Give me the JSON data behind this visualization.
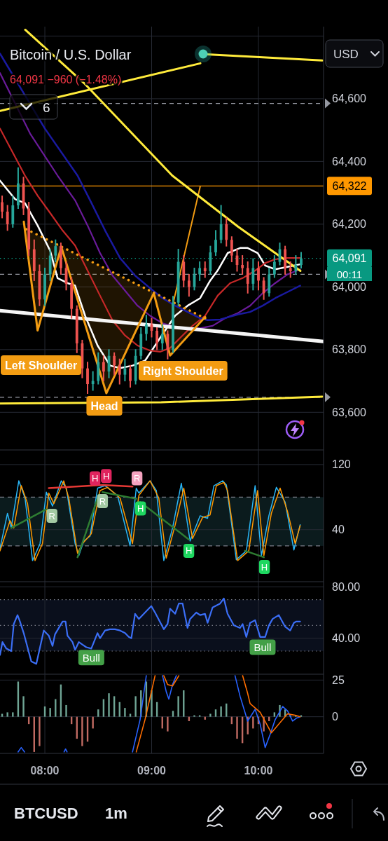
{
  "chart_data": [
    {
      "type": "candlestick",
      "title": "Bitcoin / U.S. Dollar",
      "subtitle": "64,091 −960 (−1.48%)",
      "x": [
        7.6,
        7.65,
        7.7,
        7.75,
        7.8,
        7.85,
        7.9,
        7.95,
        8,
        8.05,
        8.1,
        8.15,
        8.2,
        8.25,
        8.3,
        8.35,
        8.4,
        8.45,
        8.5,
        8.55,
        8.6,
        8.65,
        8.7,
        8.75,
        8.8,
        8.85,
        8.9,
        8.95,
        9,
        9.05,
        9.1,
        9.15,
        9.2,
        9.25,
        9.3,
        9.35,
        9.4,
        9.45,
        9.5,
        9.55,
        9.6,
        9.65,
        9.7,
        9.75,
        9.8,
        9.85,
        9.9,
        9.95,
        10,
        10.05,
        10.1,
        10.15,
        10.2,
        10.25,
        10.3,
        10.35,
        10.4
      ],
      "ohlc": [
        [
          64270,
          64290,
          64220,
          64240
        ],
        [
          64240,
          64260,
          64180,
          64200
        ],
        [
          64200,
          64290,
          64190,
          64260
        ],
        [
          64260,
          64380,
          64250,
          64330
        ],
        [
          64330,
          64350,
          64230,
          64250
        ],
        [
          64250,
          64270,
          64100,
          64120
        ],
        [
          64120,
          64150,
          64020,
          64050
        ],
        [
          64050,
          64070,
          63940,
          63960
        ],
        [
          63960,
          64060,
          63940,
          64040
        ],
        [
          64040,
          64120,
          64020,
          64100
        ],
        [
          64100,
          64150,
          64080,
          64130
        ],
        [
          64130,
          64140,
          64040,
          64060
        ],
        [
          64060,
          64080,
          63990,
          64010
        ],
        [
          64010,
          64030,
          63900,
          63930
        ],
        [
          63930,
          63940,
          63790,
          63820
        ],
        [
          63820,
          63830,
          63710,
          63740
        ],
        [
          63740,
          63760,
          63660,
          63690
        ],
        [
          63690,
          63730,
          63670,
          63700
        ],
        [
          63700,
          63790,
          63690,
          63760
        ],
        [
          63760,
          63780,
          63700,
          63730
        ],
        [
          63730,
          63800,
          63710,
          63780
        ],
        [
          63780,
          63790,
          63720,
          63750
        ],
        [
          63750,
          63770,
          63690,
          63720
        ],
        [
          63720,
          63770,
          63700,
          63740
        ],
        [
          63740,
          63750,
          63680,
          63700
        ],
        [
          63700,
          63800,
          63690,
          63780
        ],
        [
          63780,
          63870,
          63770,
          63850
        ],
        [
          63850,
          63910,
          63830,
          63880
        ],
        [
          63880,
          63900,
          63840,
          63860
        ],
        [
          63860,
          63870,
          63800,
          63820
        ],
        [
          63820,
          63880,
          63800,
          63850
        ],
        [
          63850,
          63860,
          63770,
          63800
        ],
        [
          63800,
          63970,
          63790,
          63950
        ],
        [
          63950,
          64120,
          63940,
          64080
        ],
        [
          64080,
          64100,
          64000,
          64020
        ],
        [
          64020,
          64040,
          63970,
          64000
        ],
        [
          64000,
          64060,
          63990,
          64040
        ],
        [
          64040,
          64080,
          64020,
          64060
        ],
        [
          64060,
          64080,
          64030,
          64050
        ],
        [
          64050,
          64130,
          64040,
          64110
        ],
        [
          64110,
          64180,
          64100,
          64150
        ],
        [
          64150,
          64260,
          64140,
          64200
        ],
        [
          64200,
          64220,
          64130,
          64150
        ],
        [
          64150,
          64160,
          64080,
          64100
        ],
        [
          64100,
          64120,
          64050,
          64070
        ],
        [
          64070,
          64100,
          64040,
          64060
        ],
        [
          64060,
          64080,
          63980,
          64010
        ],
        [
          64010,
          64090,
          63990,
          64060
        ],
        [
          64060,
          64080,
          63990,
          64020
        ],
        [
          64020,
          64030,
          63960,
          63980
        ],
        [
          63980,
          64060,
          63970,
          64040
        ],
        [
          64040,
          64100,
          64030,
          64080
        ],
        [
          64080,
          64140,
          64070,
          64120
        ],
        [
          64120,
          64130,
          64040,
          64060
        ],
        [
          64060,
          64080,
          64030,
          64050
        ],
        [
          64050,
          64100,
          64040,
          64070
        ],
        [
          64070,
          64110,
          64060,
          64091
        ]
      ],
      "colors": [
        "#ef5350",
        "#ef5350",
        "#26a69a",
        "#26a69a",
        "#ef5350",
        "#ef5350",
        "#ef5350",
        "#ef5350",
        "#26a69a",
        "#26a69a",
        "#26a69a",
        "#ef5350",
        "#ef5350",
        "#ef5350",
        "#ef5350",
        "#ef5350",
        "#ef5350",
        "#26a69a",
        "#26a69a",
        "#ef5350",
        "#26a69a",
        "#ef5350",
        "#ef5350",
        "#26a69a",
        "#ef5350",
        "#26a69a",
        "#26a69a",
        "#26a69a",
        "#ef5350",
        "#ef5350",
        "#26a69a",
        "#ef5350",
        "#26a69a",
        "#26a69a",
        "#ef5350",
        "#ef5350",
        "#26a69a",
        "#26a69a",
        "#ef5350",
        "#26a69a",
        "#26a69a",
        "#26a69a",
        "#ef5350",
        "#ef5350",
        "#ef5350",
        "#ef5350",
        "#ef5350",
        "#26a69a",
        "#ef5350",
        "#ef5350",
        "#26a69a",
        "#26a69a",
        "#26a69a",
        "#ef5350",
        "#ef5350",
        "#26a69a",
        "#26a69a"
      ],
      "series": [
        {
          "type": "line",
          "color": "#ffffff",
          "x": [
            7.58,
            7.721,
            7.814,
            7.932,
            8.049,
            8.119,
            8.213,
            8.283,
            8.377,
            8.494,
            8.611,
            8.704,
            8.822,
            8.939,
            9.079,
            9.22,
            9.337,
            9.454,
            9.548,
            9.618,
            9.712,
            9.829,
            9.899,
            9.993,
            10.063,
            10.157,
            10.274,
            10.391
          ],
          "values": [
            64339,
            64280,
            64267,
            64196,
            64116,
            64028,
            64012,
            64004,
            63908,
            63813,
            63749,
            63741,
            63749,
            63765,
            63837,
            63908,
            63940,
            63964,
            64020,
            64052,
            64108,
            64124,
            64124,
            64108,
            64068,
            64056,
            64064,
            64072
          ]
        },
        {
          "type": "line",
          "color": "#c62828",
          "x": [
            7.58,
            7.814,
            7.932,
            8.049,
            8.166,
            8.283,
            8.4,
            8.517,
            8.634,
            8.751,
            8.868,
            8.985,
            9.079,
            9.173,
            9.266,
            9.383,
            9.501,
            9.618,
            9.735,
            9.852,
            9.969,
            10.063,
            10.157,
            10.274,
            10.391
          ],
          "values": [
            64505,
            64355,
            64291,
            64236,
            64180,
            64132,
            64052,
            63972,
            63893,
            63845,
            63813,
            63797,
            63793,
            63805,
            63837,
            63876,
            63908,
            63972,
            64012,
            64028,
            64052,
            64076,
            64088,
            64092,
            64092
          ]
        },
        {
          "type": "line",
          "color": "#6a1b9a",
          "x": [
            7.58,
            7.862,
            8.119,
            8.283,
            8.4,
            8.517,
            8.634,
            8.751,
            8.868,
            8.985,
            9.102,
            9.22,
            9.337,
            9.454,
            9.571,
            9.688,
            9.805,
            9.922,
            10.04,
            10.157,
            10.274,
            10.391
          ],
          "values": [
            64682,
            64489,
            64355,
            64276,
            64196,
            64108,
            64036,
            63988,
            63940,
            63908,
            63884,
            63872,
            63868,
            63868,
            63876,
            63900,
            63916,
            63940,
            63980,
            64012,
            64040,
            64056
          ]
        },
        {
          "type": "line",
          "color": "#1a1aa0",
          "x": [
            7.58,
            8.0,
            8.306,
            8.424,
            8.564,
            8.704,
            8.845,
            8.985,
            9.102,
            9.22,
            9.337,
            9.454,
            9.524,
            9.641,
            9.805,
            9.922,
            10.04,
            10.157,
            10.274,
            10.391
          ],
          "values": [
            64744,
            64505,
            64355,
            64276,
            64180,
            64092,
            64036,
            63996,
            63964,
            63940,
            63920,
            63900,
            63894,
            63896,
            63912,
            63920,
            63940,
            63964,
            63984,
            64004
          ]
        },
        {
          "type": "line",
          "color": "#f5f5f5",
          "x": [
            7.58,
            10.61
          ],
          "values": [
            63924,
            63826
          ]
        },
        {
          "type": "line",
          "color": "#f39c12",
          "x": [
            7.803,
            7.932,
            8.154,
            8.576,
            9.02,
            9.173,
            9.501
          ],
          "values": [
            64208,
            63861,
            64128,
            63661,
            63980,
            63781,
            63904
          ]
        },
        {
          "type": "line",
          "color": "#f39c12",
          "line_style": "dotted",
          "x": [
            7.826,
            9.501
          ],
          "values": [
            64184,
            63900
          ]
        },
        {
          "type": "line",
          "color": "#f39c12",
          "x": [
            9.196,
            9.454
          ],
          "values": [
            63940,
            64319
          ]
        },
        {
          "type": "line",
          "color": "#ffeb3b",
          "x": [
            9.482,
            10.597
          ],
          "values": [
            64742,
            64722
          ]
        },
        {
          "type": "line",
          "color": "#ffeb3b",
          "x": [
            7.58,
            9.456
          ],
          "values": [
            64561,
            64713
          ]
        },
        {
          "type": "line",
          "color": "#ffeb3b",
          "x": [
            7.816,
            8.367,
            9.193,
            9.81,
            10.393
          ],
          "values": [
            64820,
            64650,
            64355,
            64192,
            64051
          ]
        },
        {
          "type": "line",
          "color": "#ffeb3b",
          "x": [
            7.58,
            9.09,
            10.597
          ],
          "values": [
            63628,
            63632,
            63650
          ]
        }
      ],
      "xlim": [
        7.58,
        10.61
      ],
      "xticks": [
        8,
        9,
        10
      ],
      "ylim": [
        63480,
        64830
      ],
      "yticks": [
        {
          "value": 63600,
          "label": "63,600"
        },
        {
          "value": 63800,
          "label": "63,800"
        },
        {
          "value": 64000,
          "label": "64,000"
        },
        {
          "value": 64200,
          "label": "64,200"
        },
        {
          "value": 64400,
          "label": "64,400"
        },
        {
          "value": 64600,
          "label": "64,600"
        },
        {
          "value": 64800,
          "label": null
        }
      ],
      "grid": true,
      "tick_labels": "y",
      "ref_lines": [
        {
          "axis": "y",
          "value": 64322,
          "label": "64,322",
          "color": "#ff9800"
        },
        {
          "axis": "y",
          "value": 64091,
          "label": "64,091",
          "color": "#089981",
          "line_style": "dotted"
        },
        {
          "axis": "y",
          "value": 64585,
          "color": "#9598a1",
          "line_style": "dashed"
        },
        {
          "axis": "y",
          "value": 64040,
          "color": "#9598a1",
          "line_style": "dashed"
        },
        {
          "axis": "y",
          "value": 63648,
          "color": "#9598a1",
          "line_style": "dashed"
        }
      ],
      "annotations": [
        "USD",
        "6",
        "00:11",
        "BTCUSD",
        "1m",
        "Left Shoulder",
        "Head",
        "Right Shoulder"
      ]
    },
    {
      "type": "line",
      "series": [
        {
          "color": "#29b6f6",
          "x": [
            7.58,
            7.65,
            7.685,
            7.756,
            7.814,
            7.885,
            7.955,
            8.014,
            8.072,
            8.154,
            8.201,
            8.283,
            8.318,
            8.365,
            8.423,
            8.494,
            8.564,
            8.681,
            8.798,
            8.856,
            8.88,
            8.985,
            9.044,
            9.114,
            9.196,
            9.278,
            9.36,
            9.454,
            9.524,
            9.583,
            9.665,
            9.7,
            9.793,
            9.887,
            9.969,
            10.028,
            10.098,
            10.168,
            10.25,
            10.332,
            10.391
          ],
          "values": [
            17,
            60,
            42,
            100,
            79,
            2,
            23,
            86,
            69,
            100,
            91,
            23,
            8,
            26,
            32,
            91,
            94,
            82,
            20,
            91,
            85,
            100,
            88,
            2,
            42,
            97,
            26,
            57,
            54,
            94,
            100,
            95,
            3,
            14,
            94,
            8,
            57,
            92,
            74,
            15,
            46
          ]
        },
        {
          "color": "#ff9800",
          "x": [
            7.58,
            7.674,
            7.709,
            7.779,
            7.838,
            7.908,
            7.978,
            8.037,
            8.084,
            8.177,
            8.224,
            8.306,
            8.353,
            8.435,
            8.517,
            8.587,
            8.704,
            8.821,
            8.88,
            8.985,
            9.067,
            9.137,
            9.219,
            9.301,
            9.383,
            9.477,
            9.547,
            9.606,
            9.676,
            9.711,
            9.805,
            9.91,
            9.992,
            10.051,
            10.121,
            10.203,
            10.273,
            10.344,
            10.391
          ],
          "values": [
            14,
            51,
            42,
            94,
            72,
            2,
            23,
            85,
            72,
            100,
            79,
            11,
            23,
            35,
            88,
            92,
            79,
            23,
            82,
            100,
            79,
            5,
            45,
            91,
            29,
            55,
            58,
            94,
            98,
            88,
            2,
            14,
            88,
            8,
            60,
            91,
            62,
            23,
            45
          ]
        },
        {
          "color": "#e53935",
          "x": [
            8.037,
            8.54,
            8.821
          ],
          "values": [
            91,
            95,
            93
          ]
        },
        {
          "color": "#2e7d32",
          "x": [
            7.685,
            8.014
          ],
          "values": [
            42,
            65
          ]
        },
        {
          "color": "#2e7d32",
          "x": [
            8.306,
            8.505
          ],
          "values": [
            6,
            83
          ]
        },
        {
          "color": "#2e7d32",
          "x": [
            8.54,
            8.856
          ],
          "values": [
            86,
            78
          ]
        },
        {
          "color": "#2e7d32",
          "x": [
            8.892,
            9.348
          ],
          "values": [
            74,
            28
          ]
        },
        {
          "color": "#2e7d32",
          "x": [
            9.875,
            10.051
          ],
          "values": [
            14,
            6
          ]
        }
      ],
      "xlim": [
        7.58,
        10.61
      ],
      "xticks": [
        8,
        9,
        10
      ],
      "ylim": [
        -24,
        138
      ],
      "yticks": [
        40,
        120
      ],
      "grid": true,
      "tick_labels": "y",
      "bands": [
        {
          "axis": "y",
          "from": 20,
          "to": 80,
          "color": "#0b1b1d"
        }
      ],
      "ref_lines": [
        {
          "axis": "y",
          "value": 80,
          "color": "#787b86",
          "line_style": "dashed"
        },
        {
          "axis": "y",
          "value": 20,
          "color": "#787b86",
          "line_style": "dashed"
        }
      ],
      "annotations": [
        {
          "text": "R",
          "x": 8.067,
          "y": 57
        },
        {
          "text": "H",
          "x": 8.47,
          "y": 103
        },
        {
          "text": "H",
          "x": 8.575,
          "y": 106
        },
        {
          "text": "R",
          "x": 8.54,
          "y": 75
        },
        {
          "text": "R",
          "x": 8.863,
          "y": 103
        },
        {
          "text": "H",
          "x": 8.896,
          "y": 66
        },
        {
          "text": "H",
          "x": 9.348,
          "y": 14
        },
        {
          "text": "H",
          "x": 10.056,
          "y": -6
        }
      ]
    },
    {
      "type": "line",
      "series": [
        {
          "color": "#3b6ef5",
          "x": [
            7.58,
            7.603,
            7.639,
            7.685,
            7.709,
            7.744,
            7.767,
            7.802,
            7.873,
            7.92,
            7.99,
            8.037,
            8.072,
            8.095,
            8.166,
            8.194,
            8.212,
            8.259,
            8.283,
            8.318,
            8.353,
            8.388,
            8.435,
            8.493,
            8.517,
            8.564,
            8.61,
            8.657,
            8.704,
            8.751,
            8.786,
            8.81,
            8.845,
            8.88,
            8.938,
            8.997,
            9.032,
            9.114,
            9.149,
            9.173,
            9.22,
            9.255,
            9.29,
            9.336,
            9.36,
            9.418,
            9.454,
            9.5,
            9.524,
            9.571,
            9.641,
            9.676,
            9.711,
            9.77,
            9.828,
            9.852,
            9.887,
            9.922,
            9.969,
            10.016,
            10.063,
            10.098,
            10.133,
            10.191,
            10.25,
            10.297,
            10.332,
            10.355,
            10.391
          ],
          "values": [
            27,
            37,
            32,
            30,
            51,
            58,
            53,
            44,
            22,
            20,
            46,
            42,
            34,
            43,
            53,
            53,
            42,
            37,
            31,
            37,
            35,
            33,
            32,
            44,
            40,
            46,
            47,
            47,
            46,
            44,
            41,
            40,
            59,
            55,
            60,
            65,
            60,
            47,
            51,
            63,
            59,
            67,
            67,
            48,
            55,
            60,
            58,
            59,
            52,
            64,
            67,
            71,
            59,
            50,
            48,
            51,
            41,
            52,
            54,
            41,
            41,
            50,
            55,
            58,
            49,
            46,
            52,
            53,
            53
          ]
        }
      ],
      "xlim": [
        7.58,
        10.61
      ],
      "xticks": [
        8,
        9,
        10
      ],
      "ylim": [
        12,
        84
      ],
      "yticks": [
        {
          "value": 40,
          "label": "40.00"
        },
        {
          "value": 80,
          "label": "80.00"
        }
      ],
      "grid": true,
      "tick_labels": "y",
      "bands": [
        {
          "axis": "y",
          "from": 30,
          "to": 70,
          "color": "#0a0f1c"
        }
      ],
      "ref_lines": [
        {
          "axis": "y",
          "value": 70,
          "color": "#787b86",
          "line_style": "dotted"
        },
        {
          "axis": "y",
          "value": 50,
          "color": "#787b86",
          "line_style": "dotted"
        },
        {
          "axis": "y",
          "value": 30,
          "color": "#787b86",
          "line_style": "dotted"
        }
      ],
      "annotations": [
        {
          "text": "Bull",
          "x": 8.435,
          "y": 25
        },
        {
          "text": "Bull",
          "x": 10.039,
          "y": 33
        }
      ]
    },
    {
      "type": "bar",
      "series": [
        {
          "x": [
            7.6,
            7.65,
            7.7,
            7.75,
            7.8,
            7.85,
            7.9,
            7.95,
            8,
            8.05,
            8.1,
            8.15,
            8.2,
            8.25,
            8.3,
            8.35,
            8.4,
            8.45,
            8.5,
            8.55,
            8.6,
            8.65,
            8.7,
            8.75,
            8.8,
            8.85,
            8.9,
            8.95,
            9,
            9.05,
            9.1,
            9.15,
            9.2,
            9.25,
            9.3,
            9.35,
            9.4,
            9.45,
            9.5,
            9.55,
            9.6,
            9.65,
            9.7,
            9.75,
            9.8,
            9.85,
            9.9,
            9.95,
            10,
            10.05,
            10.1,
            10.15,
            10.2,
            10.25,
            10.3,
            10.35,
            10.4
          ],
          "values": [
            2,
            3,
            3,
            24,
            14,
            -5,
            -24,
            -20,
            7,
            6,
            12,
            22,
            8,
            -5,
            -15,
            -20,
            -17,
            -8,
            5,
            12,
            16,
            14,
            10,
            6,
            2,
            14,
            18,
            24,
            18,
            10,
            -8,
            -10,
            4,
            14,
            18,
            -3,
            1,
            1,
            -2,
            2,
            5,
            7,
            9,
            -5,
            -15,
            -18,
            -12,
            -8,
            -5,
            -10,
            -3,
            3,
            8,
            5,
            1,
            1,
            1
          ],
          "colors": [
            "#6fa595",
            "#6fa595",
            "#6fa595",
            "#6fa595",
            "#6fa595",
            "#c06a62",
            "#c06a62",
            "#c06a62",
            "#6fa595",
            "#6fa595",
            "#6fa595",
            "#6fa595",
            "#6fa595",
            "#c06a62",
            "#c06a62",
            "#c06a62",
            "#c06a62",
            "#c06a62",
            "#6fa595",
            "#6fa595",
            "#6fa595",
            "#6fa595",
            "#6fa595",
            "#6fa595",
            "#6fa595",
            "#6fa595",
            "#6fa595",
            "#6fa595",
            "#6fa595",
            "#6fa595",
            "#c06a62",
            "#c06a62",
            "#6fa595",
            "#6fa595",
            "#6fa595",
            "#c06a62",
            "#6fa595",
            "#6fa595",
            "#c06a62",
            "#6fa595",
            "#6fa595",
            "#6fa595",
            "#6fa595",
            "#c06a62",
            "#c06a62",
            "#c06a62",
            "#c06a62",
            "#c06a62",
            "#c06a62",
            "#c06a62",
            "#c06a62",
            "#6fa595",
            "#6fa595",
            "#6fa595",
            "#6fa595",
            "#6fa595",
            "#6fa595"
          ]
        },
        {
          "type": "line",
          "color": "#2962ff",
          "x": [
            7.749,
            7.779,
            7.81,
            7.95,
            8.18,
            8.194,
            8.208,
            8.5,
            8.821,
            8.892,
            8.95,
            9.02,
            9.102,
            9.137,
            9.161,
            9.196,
            9.231,
            9.5,
            9.781,
            9.828,
            9.899,
            9.969,
            10.016,
            10.063,
            10.11,
            10.157,
            10.227,
            10.273,
            10.32,
            10.355,
            10.391
          ],
          "values": [
            -24,
            -21,
            -24,
            null,
            -24,
            -22,
            -24,
            null,
            -24,
            -2,
            28,
            null,
            28,
            17,
            12,
            22,
            28,
            null,
            28,
            14,
            -3,
            5,
            -5,
            -21,
            -12,
            -2,
            7,
            4,
            -3,
            -1,
            0
          ]
        },
        {
          "type": "line",
          "color": "#ff6d00",
          "x": [
            8.856,
            8.938,
            9.032,
            9.07,
            9.114,
            9.149,
            9.196,
            9.255,
            9.5,
            9.852,
            9.899,
            9.922,
            10.016,
            10.121,
            10.203,
            10.273,
            10.344,
            10.391
          ],
          "values": [
            -24,
            -2,
            28,
            null,
            28,
            22,
            21,
            28,
            null,
            28,
            16,
            9,
            3,
            -11,
            -4,
            2,
            1,
            0
          ]
        }
      ],
      "xlim": [
        7.58,
        10.61
      ],
      "xticks": [
        {
          "value": 8,
          "label": "08:00"
        },
        {
          "value": 9,
          "label": "09:00"
        },
        {
          "value": 10,
          "label": "10:00"
        }
      ],
      "ylim": [
        -25,
        29
      ],
      "yticks": [
        0,
        25
      ],
      "grid": true
    }
  ]
}
